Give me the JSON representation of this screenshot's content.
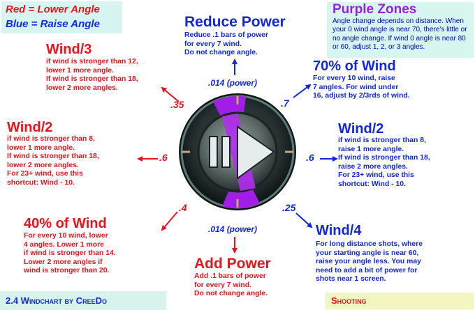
{
  "legend": {
    "red": "Red = Lower Angle",
    "blue": "Blue = Raise Angle"
  },
  "purple_zones": {
    "title": "Purple Zones",
    "description": "Angle change depends on distance. When your 0 wind angle is near 70, there's little or no angle change. If wind 0 angle is near 80 or 60, adjust 1, 2, or 3 angles."
  },
  "top": {
    "title": "Reduce Power",
    "body": [
      "Reduce .1 bars of power",
      "for every 7 wind.",
      "Do not change angle."
    ],
    "factor": ".014 (power)"
  },
  "bottom": {
    "title": "Add Power",
    "body": [
      "Add .1 bars of power",
      "for every 7 wind.",
      "Do not change angle."
    ],
    "factor": ".014 (power)"
  },
  "upper_left": {
    "title": "Wind/3",
    "body": [
      "if wind is stronger than 12,",
      "lower 1 more angle.",
      "If wind is stronger than 18,",
      "lower 2 more angles."
    ],
    "factor": ".35"
  },
  "left": {
    "title": "Wind/2",
    "body": [
      "if wind is stronger than 8,",
      "lower 1 more angle.",
      "If wind is stronger than 18,",
      "lower 2 more angles.",
      "For 23+ wind, use this",
      "shortcut: Wind - 10."
    ],
    "factor": ".6"
  },
  "lower_left": {
    "title": "40% of Wind",
    "body": [
      "For every 10 wind, lower",
      "4 angles. Lower 1 more",
      "if wind is stronger than 14.",
      "Lower 2 more angles if",
      "wind is stronger than 20."
    ],
    "factor": ".4"
  },
  "upper_right": {
    "title": "70% of Wind",
    "body": [
      "For every 10 wind, raise",
      "7 angles. For wind under",
      "16, adjust by 2/3rds of wind."
    ],
    "factor": ".7"
  },
  "right": {
    "title": "Wind/2",
    "body": [
      "if wind is stronger than 8,",
      "raise 1 more angle.",
      "If wind is stronger than 18,",
      "raise 2 more angles.",
      "For 23+ wind, use this",
      "shortcut: Wind - 10."
    ],
    "factor": ".6"
  },
  "lower_right": {
    "title": "Wind/4",
    "body": [
      "For long distance shots, where",
      "your starting angle is near 60,",
      "raise your angle less. You may",
      "need to add a bit of power for",
      "shots near 1 screen."
    ],
    "factor": ".25"
  },
  "footer": {
    "credit": "2.4 Windchart by CreeDo",
    "shooting": "Shooting"
  },
  "colors": {
    "red": "#e8141c",
    "blue": "#1026e0",
    "purple": "#9b1ee6",
    "legend_bg": "#d6f4f0",
    "shooting_bg": "#f4f6c2"
  }
}
